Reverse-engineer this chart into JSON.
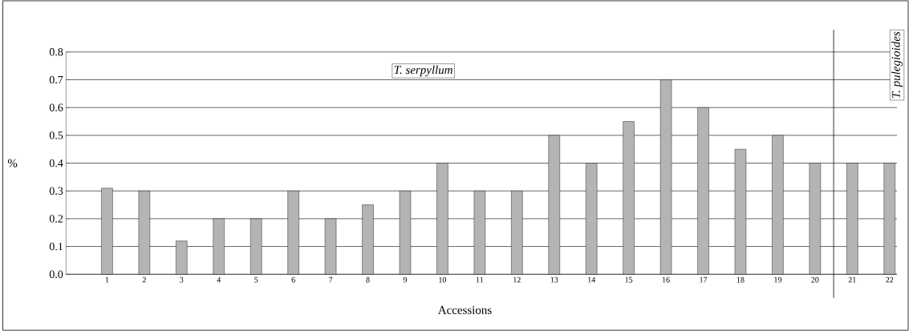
{
  "chart_data": {
    "type": "bar",
    "xlabel": "Accessions",
    "ylabel": "%",
    "x": [
      1,
      2,
      3,
      4,
      5,
      6,
      7,
      8,
      9,
      10,
      11,
      12,
      13,
      14,
      15,
      16,
      17,
      18,
      19,
      20,
      21,
      22
    ],
    "values": [
      0.31,
      0.3,
      0.12,
      0.2,
      0.2,
      0.3,
      0.2,
      0.25,
      0.3,
      0.4,
      0.3,
      0.3,
      0.5,
      0.4,
      0.55,
      0.7,
      0.6,
      0.45,
      0.5,
      0.4,
      0.4,
      0.4
    ],
    "color": "#b4b4b4",
    "xlim": [
      -0.1,
      22.2
    ],
    "xticks": [
      1,
      2,
      3,
      4,
      5,
      6,
      7,
      8,
      9,
      10,
      11,
      12,
      13,
      14,
      15,
      16,
      17,
      18,
      19,
      20,
      21,
      22
    ],
    "ylim": [
      0,
      0.8
    ],
    "yticks": [
      {
        "value": 0,
        "label": "0.0"
      },
      {
        "value": 0.1,
        "label": "0.1"
      },
      {
        "value": 0.2,
        "label": "0.2"
      },
      {
        "value": 0.3,
        "label": "0.3"
      },
      {
        "value": 0.4,
        "label": "0.4"
      },
      {
        "value": 0.5,
        "label": "0.5"
      },
      {
        "value": 0.6,
        "label": "0.6"
      },
      {
        "value": 0.7,
        "label": "0.7"
      },
      {
        "value": 0.8,
        "label": "0.8"
      }
    ],
    "grid": "y",
    "ref_lines": [
      {
        "axis": "x",
        "value": 20.5,
        "color": "#000000"
      }
    ],
    "annotations": [
      "T. serpyllum",
      "T. pulegioides"
    ]
  }
}
